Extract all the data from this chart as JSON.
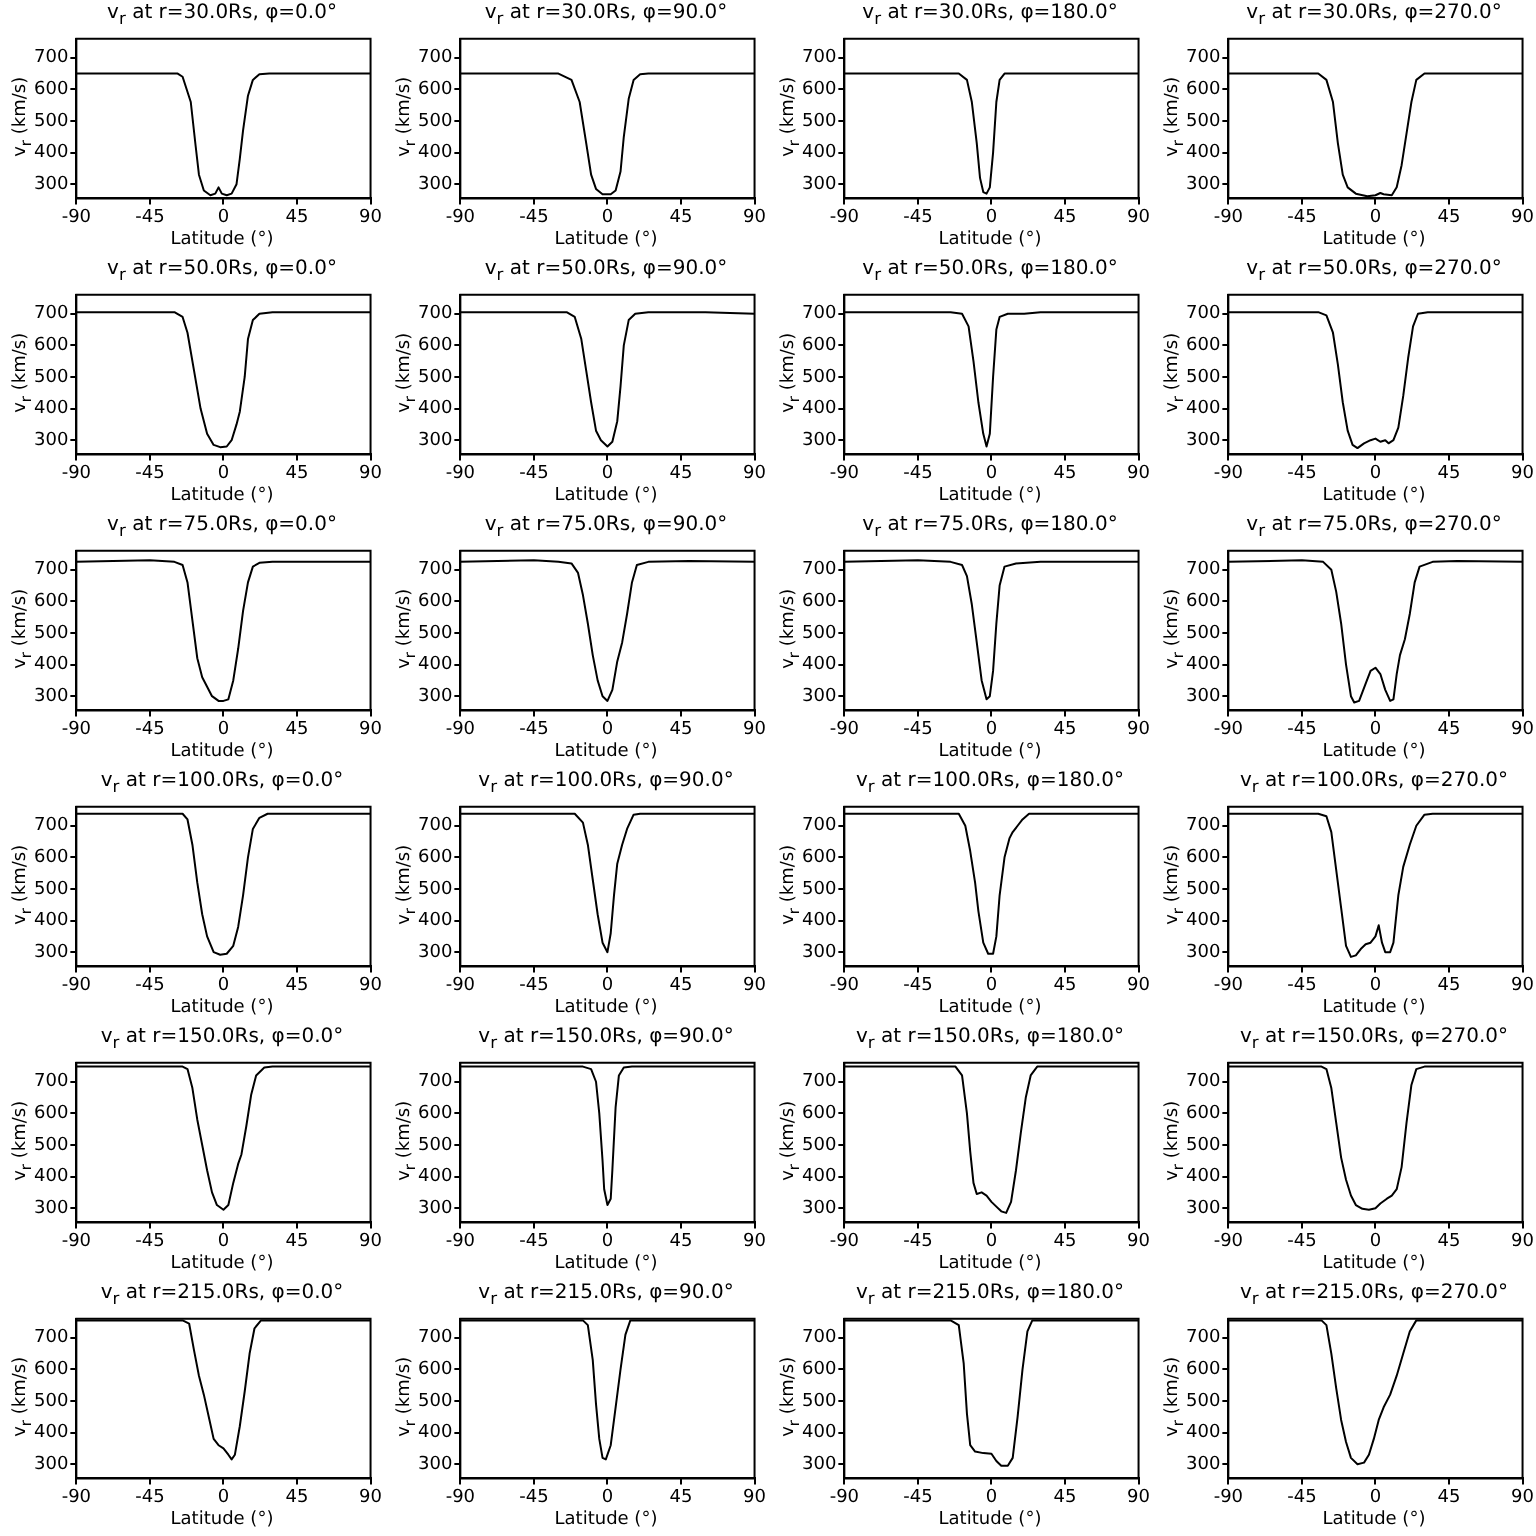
{
  "chart_data": [
    {
      "type": "line",
      "title": "v$_{r}$ at r=30.0Rs, φ=0.0°",
      "xlabel": "Latitude (°)",
      "ylabel": "v$_{r}$ (km/s)",
      "color": "#000000",
      "xlim": [
        -90,
        90
      ],
      "ylim": [
        255,
        760
      ],
      "xticks": [
        -90,
        -45,
        0,
        45,
        90
      ],
      "yticks": [
        300,
        400,
        500,
        600,
        700
      ],
      "x": [
        -90,
        -28,
        -25,
        -20,
        -17,
        -15,
        -12,
        -8,
        -5,
        -3,
        -1,
        2,
        5,
        8,
        10,
        12,
        15,
        18,
        22,
        28,
        90
      ],
      "values": [
        650,
        650,
        640,
        560,
        420,
        330,
        280,
        265,
        270,
        290,
        270,
        265,
        270,
        300,
        380,
        470,
        580,
        630,
        648,
        650,
        650
      ]
    },
    {
      "type": "line",
      "title": "v$_{r}$ at r=30.0Rs, φ=90.0°",
      "xlabel": "Latitude (°)",
      "ylabel": "v$_{r}$ (km/s)",
      "color": "#000000",
      "xlim": [
        -90,
        90
      ],
      "ylim": [
        255,
        760
      ],
      "xticks": [
        -90,
        -45,
        0,
        45,
        90
      ],
      "yticks": [
        300,
        400,
        500,
        600,
        700
      ],
      "x": [
        -90,
        -30,
        -22,
        -17,
        -13,
        -10,
        -7,
        -3,
        2,
        5,
        8,
        10,
        13,
        16,
        20,
        25,
        90
      ],
      "values": [
        650,
        650,
        630,
        560,
        430,
        330,
        285,
        268,
        268,
        280,
        340,
        450,
        570,
        630,
        648,
        650,
        650
      ]
    },
    {
      "type": "line",
      "title": "v$_{r}$ at r=30.0Rs, φ=180.0°",
      "xlabel": "Latitude (°)",
      "ylabel": "v$_{r}$ (km/s)",
      "color": "#000000",
      "xlim": [
        -90,
        90
      ],
      "ylim": [
        255,
        760
      ],
      "xticks": [
        -90,
        -45,
        0,
        45,
        90
      ],
      "yticks": [
        300,
        400,
        500,
        600,
        700
      ],
      "x": [
        -90,
        -20,
        -15,
        -12,
        -9,
        -7,
        -5,
        -3,
        -1,
        1,
        3,
        5,
        8,
        90
      ],
      "values": [
        650,
        650,
        630,
        560,
        430,
        320,
        275,
        270,
        290,
        400,
        560,
        630,
        650,
        650
      ]
    },
    {
      "type": "line",
      "title": "v$_{r}$ at r=30.0Rs, φ=270.0°",
      "xlabel": "Latitude (°)",
      "ylabel": "v$_{r}$ (km/s)",
      "color": "#000000",
      "xlim": [
        -90,
        90
      ],
      "ylim": [
        255,
        760
      ],
      "xticks": [
        -90,
        -45,
        0,
        45,
        90
      ],
      "yticks": [
        300,
        400,
        500,
        600,
        700
      ],
      "x": [
        -90,
        -35,
        -30,
        -26,
        -23,
        -20,
        -17,
        -12,
        -5,
        0,
        3,
        5,
        10,
        13,
        16,
        19,
        22,
        25,
        30,
        90
      ],
      "values": [
        650,
        650,
        630,
        560,
        430,
        330,
        290,
        270,
        262,
        265,
        272,
        268,
        265,
        290,
        360,
        460,
        560,
        630,
        650,
        650
      ]
    },
    {
      "type": "line",
      "title": "v$_{r}$ at r=50.0Rs, φ=0.0°",
      "xlabel": "Latitude (°)",
      "ylabel": "v$_{r}$ (km/s)",
      "color": "#000000",
      "xlim": [
        -90,
        90
      ],
      "ylim": [
        255,
        760
      ],
      "xticks": [
        -90,
        -45,
        0,
        45,
        90
      ],
      "yticks": [
        300,
        400,
        500,
        600,
        700
      ],
      "x": [
        -90,
        -30,
        -25,
        -22,
        -18,
        -14,
        -10,
        -6,
        -2,
        2,
        5,
        8,
        10,
        13,
        15,
        18,
        22,
        30,
        90
      ],
      "values": [
        705,
        705,
        690,
        640,
        520,
        400,
        320,
        285,
        278,
        280,
        300,
        350,
        390,
        500,
        620,
        680,
        700,
        705,
        705
      ]
    },
    {
      "type": "line",
      "title": "v$_{r}$ at r=50.0Rs, φ=90.0°",
      "xlabel": "Latitude (°)",
      "ylabel": "v$_{r}$ (km/s)",
      "color": "#000000",
      "xlim": [
        -90,
        90
      ],
      "ylim": [
        255,
        760
      ],
      "xticks": [
        -90,
        -45,
        0,
        45,
        90
      ],
      "yticks": [
        300,
        400,
        500,
        600,
        700
      ],
      "x": [
        -90,
        -25,
        -20,
        -16,
        -13,
        -10,
        -7,
        -4,
        0,
        3,
        6,
        8,
        10,
        13,
        17,
        25,
        60,
        90
      ],
      "values": [
        705,
        705,
        690,
        620,
        520,
        420,
        330,
        300,
        280,
        295,
        360,
        470,
        600,
        680,
        700,
        705,
        705,
        700
      ]
    },
    {
      "type": "line",
      "title": "v$_{r}$ at r=50.0Rs, φ=180.0°",
      "xlabel": "Latitude (°)",
      "ylabel": "v$_{r}$ (km/s)",
      "color": "#000000",
      "xlim": [
        -90,
        90
      ],
      "ylim": [
        255,
        760
      ],
      "xticks": [
        -90,
        -45,
        0,
        45,
        90
      ],
      "yticks": [
        300,
        400,
        500,
        600,
        700
      ],
      "x": [
        -90,
        -25,
        -18,
        -14,
        -11,
        -8,
        -5,
        -3,
        -1,
        1,
        3,
        5,
        10,
        20,
        30,
        90
      ],
      "values": [
        705,
        705,
        700,
        660,
        550,
        420,
        320,
        280,
        320,
        500,
        650,
        690,
        700,
        700,
        705,
        705
      ]
    },
    {
      "type": "line",
      "title": "v$_{r}$ at r=50.0Rs, φ=270.0°",
      "xlabel": "Latitude (°)",
      "ylabel": "v$_{r}$ (km/s)",
      "color": "#000000",
      "xlim": [
        -90,
        90
      ],
      "ylim": [
        255,
        760
      ],
      "xticks": [
        -90,
        -45,
        0,
        45,
        90
      ],
      "yticks": [
        300,
        400,
        500,
        600,
        700
      ],
      "x": [
        -90,
        -35,
        -30,
        -26,
        -23,
        -20,
        -17,
        -14,
        -11,
        -7,
        -3,
        0,
        3,
        6,
        8,
        11,
        14,
        17,
        20,
        23,
        26,
        32,
        90
      ],
      "values": [
        705,
        705,
        695,
        640,
        540,
        420,
        330,
        285,
        275,
        290,
        300,
        305,
        295,
        300,
        290,
        300,
        340,
        440,
        560,
        660,
        700,
        705,
        705
      ]
    },
    {
      "type": "line",
      "title": "v$_{r}$ at r=75.0Rs, φ=0.0°",
      "xlabel": "Latitude (°)",
      "ylabel": "v$_{r}$ (km/s)",
      "color": "#000000",
      "xlim": [
        -90,
        90
      ],
      "ylim": [
        255,
        760
      ],
      "xticks": [
        -90,
        -45,
        0,
        45,
        90
      ],
      "yticks": [
        300,
        400,
        500,
        600,
        700
      ],
      "x": [
        -90,
        -45,
        -30,
        -25,
        -22,
        -19,
        -16,
        -13,
        -10,
        -7,
        -3,
        0,
        3,
        6,
        9,
        12,
        15,
        18,
        22,
        30,
        90
      ],
      "values": [
        725,
        730,
        725,
        715,
        660,
        540,
        420,
        360,
        330,
        300,
        285,
        285,
        290,
        350,
        450,
        570,
        660,
        710,
        722,
        725,
        725
      ]
    },
    {
      "type": "line",
      "title": "v$_{r}$ at r=75.0Rs, φ=90.0°",
      "xlabel": "Latitude (°)",
      "ylabel": "v$_{r}$ (km/s)",
      "color": "#000000",
      "xlim": [
        -90,
        90
      ],
      "ylim": [
        255,
        760
      ],
      "xticks": [
        -90,
        -45,
        0,
        45,
        90
      ],
      "yticks": [
        300,
        400,
        500,
        600,
        700
      ],
      "x": [
        -90,
        -45,
        -30,
        -22,
        -18,
        -15,
        -12,
        -9,
        -6,
        -3,
        0,
        3,
        6,
        9,
        12,
        15,
        18,
        25,
        50,
        90
      ],
      "values": [
        725,
        730,
        725,
        720,
        690,
        620,
        530,
        430,
        350,
        300,
        285,
        320,
        410,
        470,
        560,
        660,
        715,
        725,
        728,
        725
      ]
    },
    {
      "type": "line",
      "title": "v$_{r}$ at r=75.0Rs, φ=180.0°",
      "xlabel": "Latitude (°)",
      "ylabel": "v$_{r}$ (km/s)",
      "color": "#000000",
      "xlim": [
        -90,
        90
      ],
      "ylim": [
        255,
        760
      ],
      "xticks": [
        -90,
        -45,
        0,
        45,
        90
      ],
      "yticks": [
        300,
        400,
        500,
        600,
        700
      ],
      "x": [
        -90,
        -45,
        -25,
        -18,
        -15,
        -12,
        -9,
        -6,
        -3,
        -1,
        1,
        3,
        5,
        8,
        15,
        30,
        90
      ],
      "values": [
        725,
        730,
        725,
        715,
        680,
        590,
        470,
        350,
        290,
        300,
        380,
        530,
        650,
        710,
        720,
        725,
        725
      ]
    },
    {
      "type": "line",
      "title": "v$_{r}$ at r=75.0Rs, φ=270.0°",
      "xlabel": "Latitude (°)",
      "ylabel": "v$_{r}$ (km/s)",
      "color": "#000000",
      "xlim": [
        -90,
        90
      ],
      "ylim": [
        255,
        760
      ],
      "xticks": [
        -90,
        -45,
        0,
        45,
        90
      ],
      "yticks": [
        300,
        400,
        500,
        600,
        700
      ],
      "x": [
        -90,
        -45,
        -32,
        -27,
        -24,
        -21,
        -18,
        -15,
        -13,
        -10,
        -6,
        -3,
        0,
        3,
        6,
        9,
        11,
        13,
        15,
        18,
        21,
        24,
        27,
        35,
        50,
        90
      ],
      "values": [
        725,
        730,
        725,
        700,
        630,
        530,
        400,
        300,
        280,
        285,
        340,
        380,
        390,
        370,
        320,
        285,
        290,
        370,
        430,
        480,
        560,
        660,
        710,
        725,
        728,
        725
      ]
    },
    {
      "type": "line",
      "title": "v$_{r}$ at r=100.0Rs, φ=0.0°",
      "xlabel": "Latitude (°)",
      "ylabel": "v$_{r}$ (km/s)",
      "color": "#000000",
      "xlim": [
        -90,
        90
      ],
      "ylim": [
        255,
        760
      ],
      "xticks": [
        -90,
        -45,
        0,
        45,
        90
      ],
      "yticks": [
        300,
        400,
        500,
        600,
        700
      ],
      "x": [
        -90,
        -25,
        -22,
        -19,
        -16,
        -13,
        -10,
        -6,
        -2,
        2,
        6,
        9,
        12,
        15,
        18,
        22,
        27,
        90
      ],
      "values": [
        738,
        738,
        720,
        640,
        520,
        420,
        350,
        300,
        292,
        295,
        320,
        380,
        480,
        600,
        690,
        725,
        738,
        738
      ]
    },
    {
      "type": "line",
      "title": "v$_{r}$ at r=100.0Rs, φ=90.0°",
      "xlabel": "Latitude (°)",
      "ylabel": "v$_{r}$ (km/s)",
      "color": "#000000",
      "xlim": [
        -90,
        90
      ],
      "ylim": [
        255,
        760
      ],
      "xticks": [
        -90,
        -45,
        0,
        45,
        90
      ],
      "yticks": [
        300,
        400,
        500,
        600,
        700
      ],
      "x": [
        -90,
        -20,
        -15,
        -12,
        -9,
        -6,
        -3,
        0,
        2,
        4,
        6,
        9,
        12,
        16,
        20,
        90
      ],
      "values": [
        738,
        738,
        710,
        640,
        530,
        420,
        330,
        300,
        360,
        480,
        580,
        640,
        690,
        735,
        738,
        738
      ]
    },
    {
      "type": "line",
      "title": "v$_{r}$ at r=100.0Rs, φ=180.0°",
      "xlabel": "Latitude (°)",
      "ylabel": "v$_{r}$ (km/s)",
      "color": "#000000",
      "xlim": [
        -90,
        90
      ],
      "ylim": [
        255,
        760
      ],
      "xticks": [
        -90,
        -45,
        0,
        45,
        90
      ],
      "yticks": [
        300,
        400,
        500,
        600,
        700
      ],
      "x": [
        -90,
        -20,
        -16,
        -13,
        -10,
        -8,
        -5,
        -2,
        1,
        3,
        5,
        8,
        11,
        13,
        16,
        19,
        23,
        90
      ],
      "values": [
        738,
        738,
        700,
        620,
        520,
        430,
        330,
        295,
        295,
        350,
        480,
        600,
        660,
        680,
        700,
        720,
        738,
        738
      ]
    },
    {
      "type": "line",
      "title": "v$_{r}$ at r=100.0Rs, φ=270.0°",
      "xlabel": "Latitude (°)",
      "ylabel": "v$_{r}$ (km/s)",
      "color": "#000000",
      "xlim": [
        -90,
        90
      ],
      "ylim": [
        255,
        760
      ],
      "xticks": [
        -90,
        -45,
        0,
        45,
        90
      ],
      "yticks": [
        300,
        400,
        500,
        600,
        700
      ],
      "x": [
        -90,
        -35,
        -30,
        -27,
        -24,
        -21,
        -18,
        -15,
        -12,
        -9,
        -6,
        -3,
        0,
        2,
        4,
        6,
        9,
        11,
        14,
        17,
        21,
        25,
        30,
        35,
        90
      ],
      "values": [
        738,
        738,
        730,
        680,
        560,
        440,
        320,
        285,
        290,
        310,
        325,
        330,
        350,
        385,
        330,
        300,
        300,
        330,
        480,
        570,
        640,
        700,
        735,
        738,
        738
      ]
    },
    {
      "type": "line",
      "title": "v$_{r}$ at r=150.0Rs, φ=0.0°",
      "xlabel": "Latitude (°)",
      "ylabel": "v$_{r}$ (km/s)",
      "color": "#000000",
      "xlim": [
        -90,
        90
      ],
      "ylim": [
        255,
        760
      ],
      "xticks": [
        -90,
        -45,
        0,
        45,
        90
      ],
      "yticks": [
        300,
        400,
        500,
        600,
        700
      ],
      "x": [
        -90,
        -25,
        -22,
        -19,
        -16,
        -13,
        -10,
        -7,
        -4,
        0,
        3,
        6,
        9,
        11,
        14,
        17,
        20,
        25,
        30,
        90
      ],
      "values": [
        748,
        748,
        740,
        680,
        580,
        500,
        420,
        350,
        310,
        295,
        310,
        380,
        440,
        470,
        560,
        660,
        720,
        745,
        748,
        748
      ]
    },
    {
      "type": "line",
      "title": "v$_{r}$ at r=150.0Rs, φ=90.0°",
      "xlabel": "Latitude (°)",
      "ylabel": "v$_{r}$ (km/s)",
      "color": "#000000",
      "xlim": [
        -90,
        90
      ],
      "ylim": [
        255,
        760
      ],
      "xticks": [
        -90,
        -45,
        0,
        45,
        90
      ],
      "yticks": [
        300,
        400,
        500,
        600,
        700
      ],
      "x": [
        -90,
        -15,
        -10,
        -7,
        -5,
        -3,
        -2,
        0,
        2,
        3,
        5,
        7,
        10,
        15,
        90
      ],
      "values": [
        748,
        748,
        740,
        700,
        600,
        450,
        360,
        310,
        330,
        420,
        620,
        720,
        745,
        748,
        748
      ]
    },
    {
      "type": "line",
      "title": "v$_{r}$ at r=150.0Rs, φ=180.0°",
      "xlabel": "Latitude (°)",
      "ylabel": "v$_{r}$ (km/s)",
      "color": "#000000",
      "xlim": [
        -90,
        90
      ],
      "ylim": [
        255,
        760
      ],
      "xticks": [
        -90,
        -45,
        0,
        45,
        90
      ],
      "yticks": [
        300,
        400,
        500,
        600,
        700
      ],
      "x": [
        -90,
        -22,
        -18,
        -15,
        -13,
        -11,
        -9,
        -6,
        -3,
        0,
        3,
        6,
        9,
        12,
        15,
        18,
        21,
        24,
        28,
        90
      ],
      "values": [
        748,
        748,
        720,
        600,
        480,
        380,
        345,
        350,
        340,
        320,
        305,
        290,
        285,
        320,
        420,
        540,
        650,
        720,
        748,
        748
      ]
    },
    {
      "type": "line",
      "title": "v$_{r}$ at r=150.0Rs, φ=270.0°",
      "xlabel": "Latitude (°)",
      "ylabel": "v$_{r}$ (km/s)",
      "color": "#000000",
      "xlim": [
        -90,
        90
      ],
      "ylim": [
        255,
        760
      ],
      "xticks": [
        -90,
        -45,
        0,
        45,
        90
      ],
      "yticks": [
        300,
        400,
        500,
        600,
        700
      ],
      "x": [
        -90,
        -33,
        -30,
        -27,
        -24,
        -21,
        -18,
        -15,
        -12,
        -8,
        -4,
        0,
        3,
        7,
        10,
        13,
        16,
        19,
        22,
        25,
        30,
        90
      ],
      "values": [
        748,
        748,
        740,
        680,
        570,
        460,
        390,
        340,
        310,
        298,
        295,
        300,
        315,
        330,
        340,
        360,
        430,
        570,
        690,
        740,
        748,
        748
      ]
    },
    {
      "type": "line",
      "title": "v$_{r}$ at r=215.0Rs, φ=0.0°",
      "xlabel": "Latitude (°)",
      "ylabel": "v$_{r}$ (km/s)",
      "color": "#000000",
      "xlim": [
        -90,
        90
      ],
      "ylim": [
        255,
        760
      ],
      "xticks": [
        -90,
        -45,
        0,
        45,
        90
      ],
      "yticks": [
        300,
        400,
        500,
        600,
        700
      ],
      "x": [
        -90,
        -25,
        -21,
        -18,
        -15,
        -12,
        -9,
        -6,
        -3,
        0,
        3,
        5,
        7,
        10,
        13,
        16,
        19,
        23,
        90
      ],
      "values": [
        755,
        755,
        745,
        660,
        580,
        520,
        450,
        380,
        360,
        350,
        330,
        315,
        330,
        420,
        530,
        650,
        730,
        755,
        755
      ]
    },
    {
      "type": "line",
      "title": "v$_{r}$ at r=215.0Rs, φ=90.0°",
      "xlabel": "Latitude (°)",
      "ylabel": "v$_{r}$ (km/s)",
      "color": "#000000",
      "xlim": [
        -90,
        90
      ],
      "ylim": [
        255,
        760
      ],
      "xticks": [
        -90,
        -45,
        0,
        45,
        90
      ],
      "yticks": [
        300,
        400,
        500,
        600,
        700
      ],
      "x": [
        -90,
        -15,
        -12,
        -9,
        -7,
        -5,
        -3,
        -1,
        2,
        5,
        8,
        11,
        14,
        90
      ],
      "values": [
        755,
        755,
        740,
        630,
        490,
        380,
        320,
        315,
        360,
        480,
        600,
        710,
        755,
        755
      ]
    },
    {
      "type": "line",
      "title": "v$_{r}$ at r=215.0Rs, φ=180.0°",
      "xlabel": "Latitude (°)",
      "ylabel": "v$_{r}$ (km/s)",
      "color": "#000000",
      "xlim": [
        -90,
        90
      ],
      "ylim": [
        255,
        760
      ],
      "xticks": [
        -90,
        -45,
        0,
        45,
        90
      ],
      "yticks": [
        300,
        400,
        500,
        600,
        700
      ],
      "x": [
        -90,
        -25,
        -20,
        -17,
        -15,
        -13,
        -10,
        -5,
        0,
        3,
        6,
        10,
        13,
        16,
        19,
        22,
        25,
        90
      ],
      "values": [
        755,
        755,
        740,
        620,
        460,
        360,
        340,
        335,
        333,
        310,
        295,
        295,
        320,
        450,
        600,
        720,
        755,
        755
      ]
    },
    {
      "type": "line",
      "title": "v$_{r}$ at r=215.0Rs, φ=270.0°",
      "xlabel": "Latitude (°)",
      "ylabel": "v$_{r}$ (km/s)",
      "color": "#000000",
      "xlim": [
        -90,
        90
      ],
      "ylim": [
        255,
        760
      ],
      "xticks": [
        -90,
        -45,
        0,
        45,
        90
      ],
      "yticks": [
        300,
        400,
        500,
        600,
        700
      ],
      "x": [
        -90,
        -33,
        -30,
        -27,
        -24,
        -21,
        -18,
        -15,
        -11,
        -7,
        -4,
        -1,
        2,
        5,
        9,
        13,
        17,
        21,
        25,
        90
      ],
      "values": [
        755,
        755,
        740,
        650,
        540,
        440,
        370,
        320,
        300,
        305,
        330,
        380,
        440,
        480,
        520,
        580,
        650,
        720,
        755,
        755
      ]
    }
  ]
}
